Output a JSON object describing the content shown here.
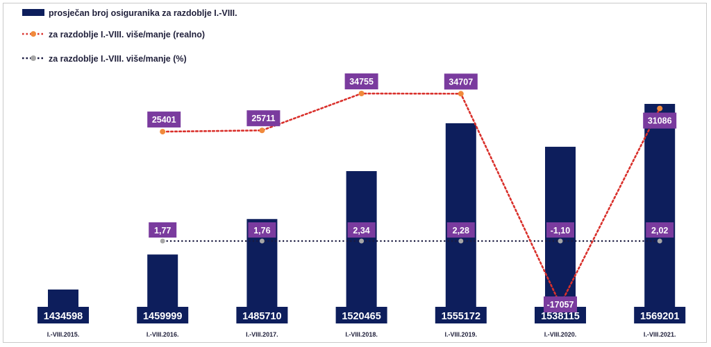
{
  "chart_data": {
    "type": "bar",
    "categories": [
      "I.-VIII.2015.",
      "I.-VIII.2016.",
      "I.-VIII.2017.",
      "I.-VIII.2018.",
      "I.-VIII.2019.",
      "I.-VIII.2020.",
      "I.-VIII.2021."
    ],
    "series": [
      {
        "name": "prosječan broj osiguranika za razdoblje I.-VIII.",
        "type": "bar",
        "values": [
          1434598,
          1459999,
          1485710,
          1520465,
          1555172,
          1538115,
          1569201
        ],
        "labels": [
          "1434598",
          "1459999",
          "1485710",
          "1520465",
          "1555172",
          "1538115",
          "1569201"
        ],
        "color": "#0d1e5c"
      },
      {
        "name": "za razdoblje I.-VIII. više/manje (realno)",
        "type": "line",
        "style": "dotted",
        "values": [
          null,
          25401,
          25711,
          34755,
          34707,
          -17057,
          31086
        ],
        "labels": [
          "",
          "25401",
          "25711",
          "34755",
          "34707",
          "-17057",
          "31086"
        ],
        "color": "#d9302b",
        "marker_color": "#f08a3c"
      },
      {
        "name": "za razdoblje I.-VIII. više/manje (%)",
        "type": "line",
        "style": "dotted",
        "values": [
          null,
          1.77,
          1.76,
          2.34,
          2.28,
          -1.1,
          2.02
        ],
        "labels": [
          "",
          "1,77",
          "1,76",
          "2,34",
          "2,28",
          "-1,10",
          "2,02"
        ],
        "color": "#1a1a40",
        "marker_color": "#a6a6a6"
      }
    ],
    "label_box_color": "#7a3b9e",
    "legend_position": "top-left",
    "grid": false
  }
}
